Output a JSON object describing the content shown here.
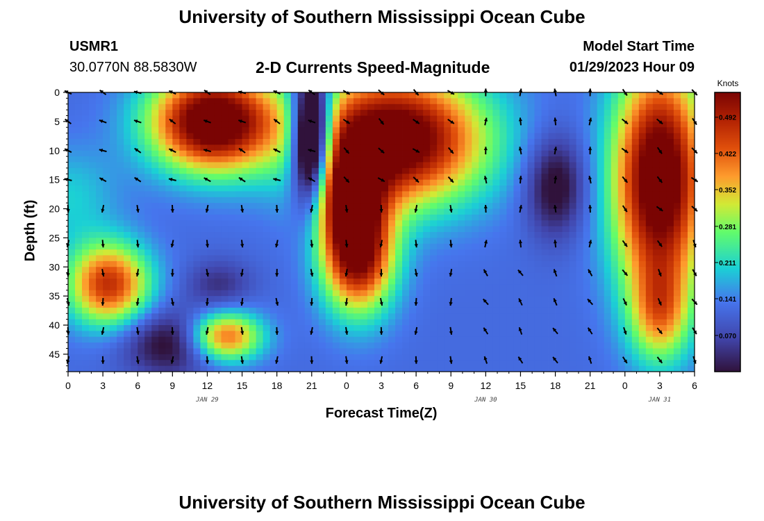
{
  "header": {
    "title": "University of Southern Mississippi Ocean Cube",
    "station_id": "USMR1",
    "coordinates": "30.0770N  88.5830W",
    "subtitle": "2-D Currents Speed-Magnitude",
    "model_start_label": "Model Start Time",
    "model_start_time": "01/29/2023 Hour 09"
  },
  "footer": {
    "title": "University of Southern Mississippi Ocean Cube"
  },
  "chart_data": {
    "type": "heatmap",
    "title": "2-D Currents Speed-Magnitude",
    "xlabel": "Forecast Time(Z)",
    "ylabel": "Depth (ft)",
    "x_range_hours": [
      0,
      54
    ],
    "x_tick_labels": [
      "0",
      "3",
      "6",
      "9",
      "12",
      "15",
      "18",
      "21",
      "0",
      "3",
      "6",
      "9",
      "12",
      "15",
      "18",
      "21",
      "0",
      "3",
      "6"
    ],
    "date_labels": [
      {
        "hour": 12,
        "text": "JAN 29"
      },
      {
        "hour": 36,
        "text": "JAN 30"
      },
      {
        "hour": 51,
        "text": "JAN 31"
      }
    ],
    "y_range": [
      0,
      48
    ],
    "y_ticks": [
      0,
      5,
      10,
      15,
      20,
      25,
      30,
      35,
      40,
      45
    ],
    "colorbar": {
      "label": "Knots",
      "range": [
        0.0,
        0.54
      ],
      "ticks": [
        "0.492",
        "0.422",
        "0.352",
        "0.281",
        "0.211",
        "0.141",
        "0.070"
      ],
      "tick_values": [
        0.492,
        0.422,
        0.352,
        0.281,
        0.211,
        0.141,
        0.07
      ]
    },
    "arrow_hours": [
      0,
      3,
      6,
      9,
      12,
      15,
      18,
      21,
      24,
      27,
      30,
      33,
      36,
      39,
      42,
      45,
      48,
      51,
      54
    ],
    "arrow_depths": [
      0,
      5,
      10,
      15,
      20,
      26,
      31,
      36,
      41,
      46
    ],
    "speed_blobs": [
      {
        "hour": 12.5,
        "depth": 5,
        "w_hours": 3.8,
        "w_depth": 6,
        "peak": 0.5
      },
      {
        "hour": 21,
        "depth": 8,
        "w_hours": 1.2,
        "w_depth": 8,
        "peak": -0.5
      },
      {
        "hour": 28,
        "depth": 8,
        "w_hours": 5.5,
        "w_depth": 8,
        "peak": 0.5
      },
      {
        "hour": 25,
        "depth": 28,
        "w_hours": 2.2,
        "w_depth": 7,
        "peak": 0.42
      },
      {
        "hour": 24,
        "depth": 18,
        "w_hours": 2,
        "w_depth": 6,
        "peak": 0.3
      },
      {
        "hour": 51,
        "depth": 15,
        "w_hours": 2.8,
        "w_depth": 14,
        "peak": 0.5
      },
      {
        "hour": 51,
        "depth": 38,
        "w_hours": 1.8,
        "w_depth": 6,
        "peak": 0.2
      },
      {
        "hour": 3.5,
        "depth": 33,
        "w_hours": 2.5,
        "w_depth": 5,
        "peak": 0.35
      },
      {
        "hour": 13.5,
        "depth": 42,
        "w_hours": 2.2,
        "w_depth": 3,
        "peak": 0.32
      },
      {
        "hour": 9,
        "depth": 43,
        "w_hours": 3,
        "w_depth": 4,
        "peak": -0.15
      },
      {
        "hour": 13,
        "depth": 33,
        "w_hours": 2,
        "w_depth": 3,
        "peak": -0.08
      },
      {
        "hour": 42,
        "depth": 16,
        "w_hours": 1.8,
        "w_depth": 6,
        "peak": -0.15
      },
      {
        "hour": 0,
        "depth": 18,
        "w_hours": 3,
        "w_depth": 6,
        "peak": 0.08
      }
    ],
    "speed_base": 0.12
  }
}
